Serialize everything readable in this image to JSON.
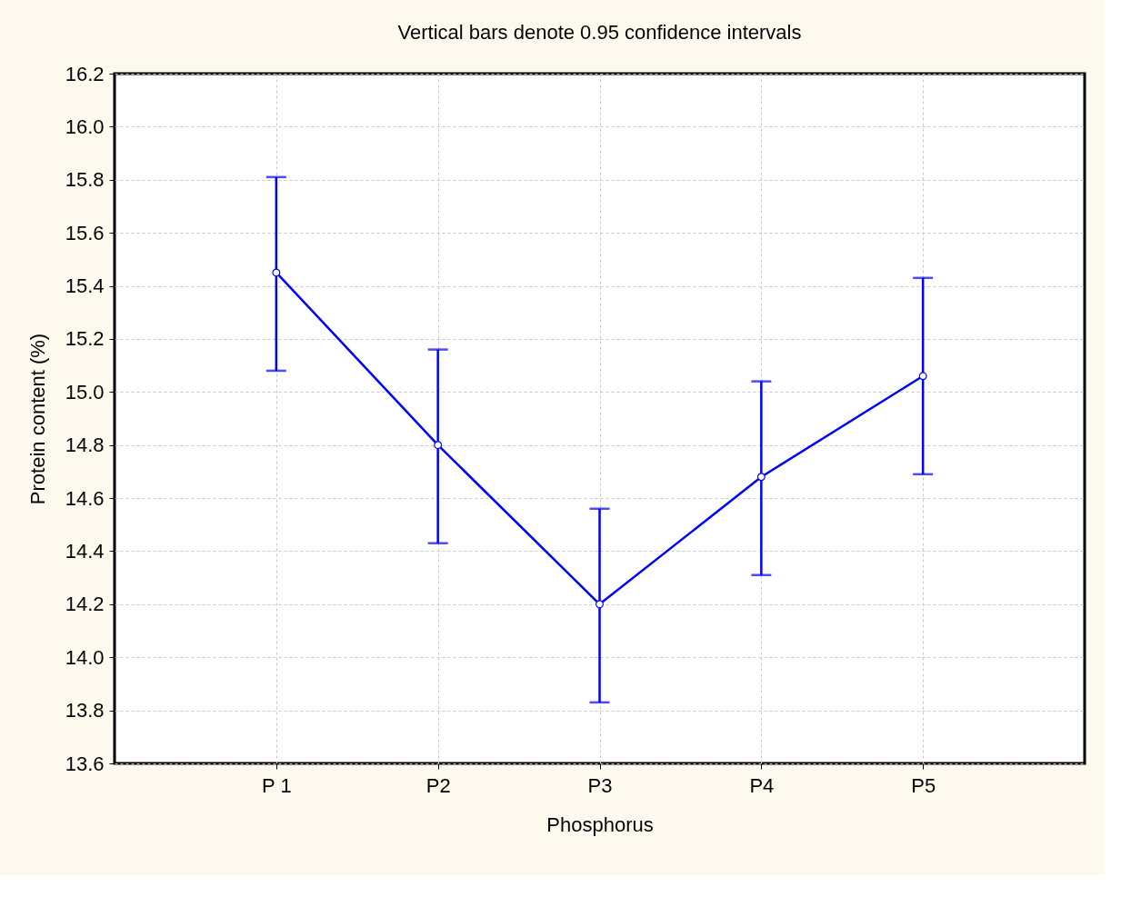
{
  "chart_data": {
    "type": "line",
    "title": "Vertical bars denote 0.95 confidence intervals",
    "xlabel": "Phosphorus",
    "ylabel": "Protein content (%)",
    "categories": [
      "P 1",
      "P2",
      "P3",
      "P4",
      "P5"
    ],
    "series": [
      {
        "color": "#0000ff",
        "values": [
          15.45,
          14.8,
          14.2,
          14.68,
          15.06
        ],
        "errors": [
          [
            15.08,
            15.81
          ],
          [
            14.43,
            15.16
          ],
          [
            13.83,
            14.56
          ],
          [
            14.31,
            15.04
          ],
          [
            14.69,
            15.43
          ]
        ]
      }
    ],
    "ylim": [
      13.6,
      16.2
    ],
    "yticks": [
      13.6,
      13.8,
      {
        "value": 14,
        "label": "14.0"
      },
      14.2,
      14.4,
      14.6,
      14.8,
      {
        "value": 15,
        "label": "15.0"
      },
      15.2,
      15.4,
      15.6,
      15.8,
      {
        "value": 16,
        "label": "16.0"
      },
      16.2
    ],
    "grid": true,
    "marker": "circle",
    "line_style": "solid"
  }
}
